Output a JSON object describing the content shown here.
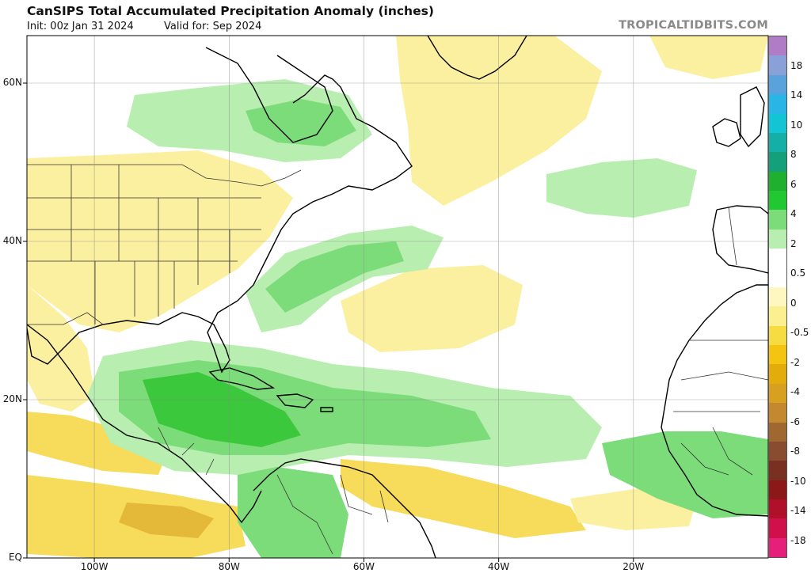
{
  "header": {
    "title": "CanSIPS Total Accumulated Precipitation Anomaly (inches)",
    "init": "Init: 00z Jan 31 2024",
    "valid": "Valid for: Sep 2024",
    "brand": "TROPICALTIDBITS.COM"
  },
  "map": {
    "lat_labels": [
      {
        "text": "60N",
        "lat": 60
      },
      {
        "text": "40N",
        "lat": 40
      },
      {
        "text": "20N",
        "lat": 20
      },
      {
        "text": "EQ",
        "lat": 0
      }
    ],
    "lon_labels": [
      {
        "text": "100W",
        "lon": -100
      },
      {
        "text": "80W",
        "lon": -80
      },
      {
        "text": "60W",
        "lon": -60
      },
      {
        "text": "40W",
        "lon": -40
      },
      {
        "text": "20W",
        "lon": -20
      }
    ],
    "colors": {
      "land_outline": "#000000",
      "state_borders": "#333333",
      "ocean_bg": "#ffffff"
    }
  },
  "colorbar": {
    "labels": [
      "18",
      "14",
      "10",
      "8",
      "6",
      "4",
      "2",
      "0.5",
      "0",
      "-0.5",
      "-2",
      "-4",
      "-6",
      "-8",
      "-10",
      "-14",
      "-18"
    ],
    "colors": [
      "#b07cc6",
      "#8aa0d8",
      "#5aa2dc",
      "#29b6e6",
      "#12c4d4",
      "#14b0a8",
      "#13a07a",
      "#1fb030",
      "#22c832",
      "#7ddc7a",
      "#b8eeb0",
      "#ffffff",
      "#ffffff",
      "#fff6c0",
      "#fbef90",
      "#f6dc40",
      "#f3c510",
      "#e4ac0a",
      "#d8a020",
      "#c38830",
      "#a06830",
      "#8a4c30",
      "#7a3020",
      "#8c1818",
      "#b0102a",
      "#d0104a",
      "#e4207a"
    ]
  }
}
